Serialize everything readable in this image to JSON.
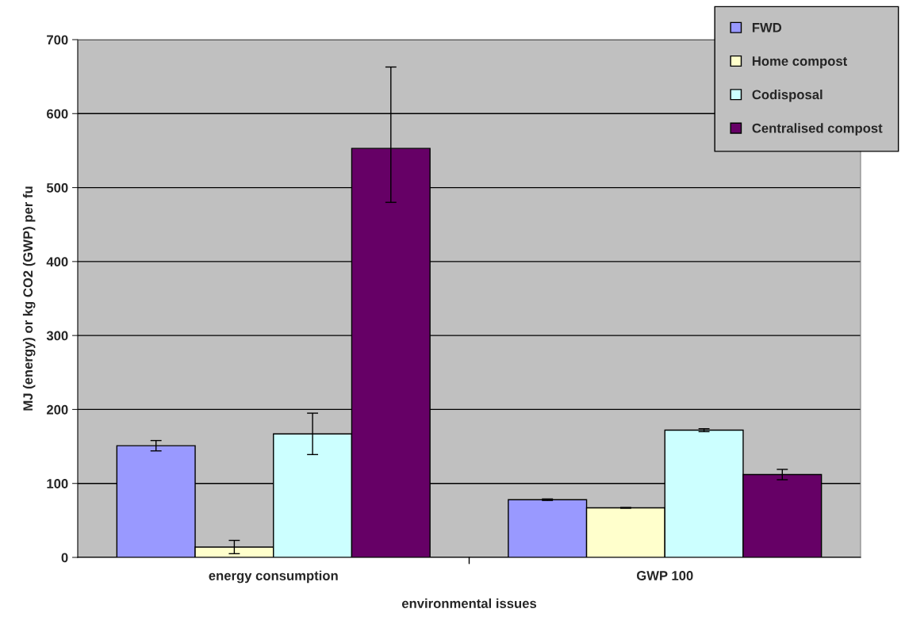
{
  "chart_data": {
    "type": "bar",
    "xlabel": "environmental issues",
    "ylabel": "MJ (energy) or kg CO2 (GWP) per fu",
    "categories": [
      "energy consumption",
      "GWP 100"
    ],
    "series": [
      {
        "name": "FWD",
        "color": "#9999ff",
        "values": [
          151,
          78
        ],
        "errors": [
          7,
          1
        ]
      },
      {
        "name": "Home compost",
        "color": "#ffffcc",
        "values": [
          14,
          67
        ],
        "errors": [
          9,
          0.5
        ]
      },
      {
        "name": "Codisposal",
        "color": "#ccffff",
        "values": [
          167,
          172
        ],
        "errors": [
          28,
          2
        ]
      },
      {
        "name": "Centralised compost",
        "color": "#660066",
        "values": [
          553,
          112
        ],
        "errors": [
          [
            480,
            663
          ],
          7
        ]
      }
    ],
    "ylim": [
      0,
      700
    ],
    "yticks": [
      0,
      100,
      200,
      300,
      400,
      500,
      600,
      700
    ],
    "grid": "y",
    "legend": "top right"
  }
}
